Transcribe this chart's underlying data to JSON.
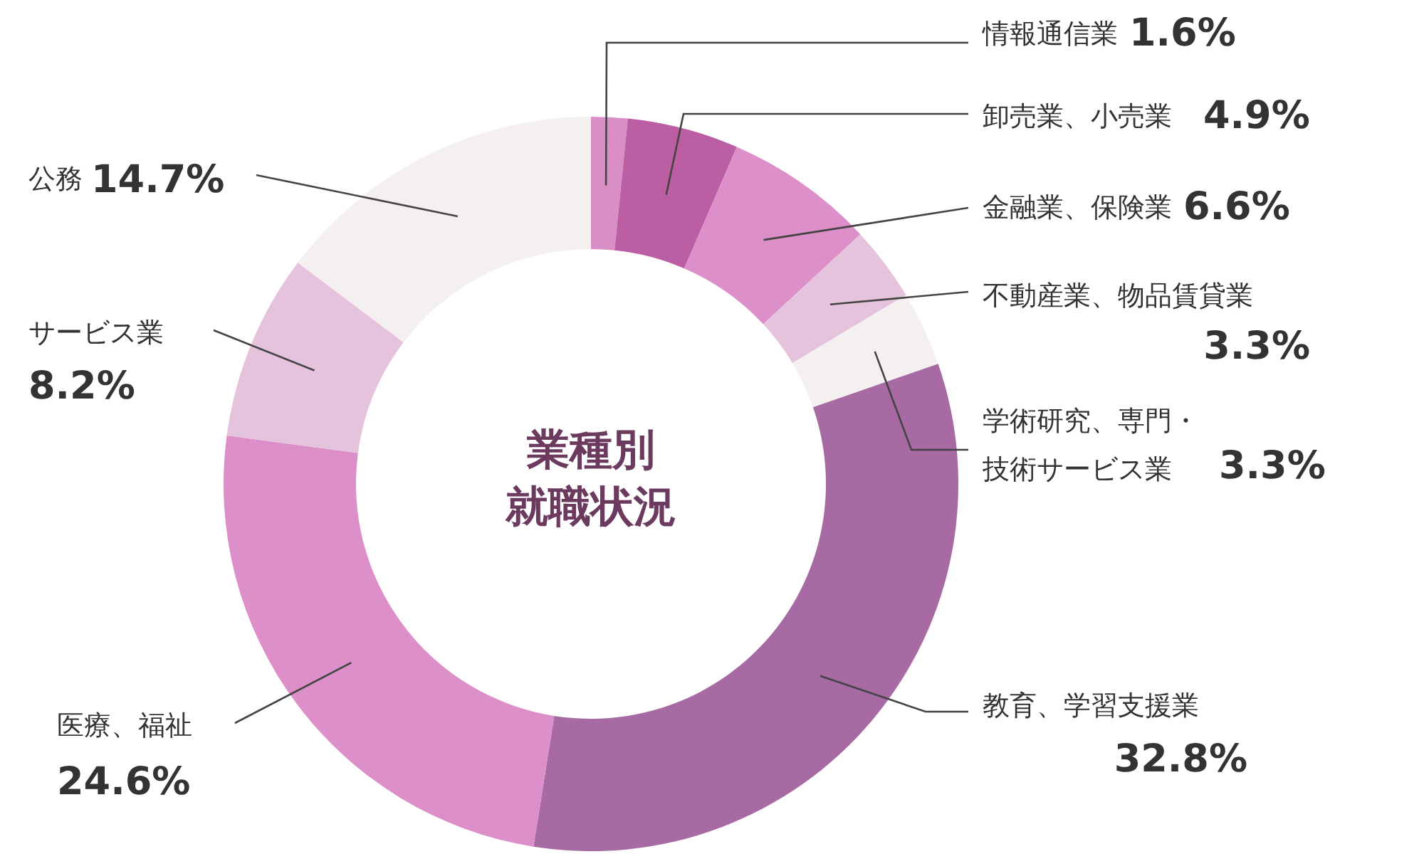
{
  "chart_data": {
    "type": "donut",
    "title": "業種別就職状況",
    "categories": [
      "情報通信業",
      "卸売業、小売業",
      "金融業、保険業",
      "不動産業、物品賃貸業",
      "学術研究、専門・技術サービス業",
      "教育、学習支援業",
      "医療、福祉",
      "サービス業",
      "公務"
    ],
    "values": [
      1.6,
      4.9,
      6.6,
      3.3,
      3.3,
      32.8,
      24.6,
      8.2,
      14.7
    ],
    "value_labels": [
      "1.6%",
      "4.9%",
      "6.6%",
      "3.3%",
      "3.3%",
      "32.8%",
      "24.6%",
      "8.2%",
      "14.7%"
    ],
    "colors": [
      "#d98fc6",
      "#bc5ea3",
      "#dc8fc8",
      "#e6c3dc",
      "#f4f0f0",
      "#a86aa2",
      "#dc8fc8",
      "#e6c3dc",
      "#f4f0f0"
    ],
    "legend": false
  }
}
